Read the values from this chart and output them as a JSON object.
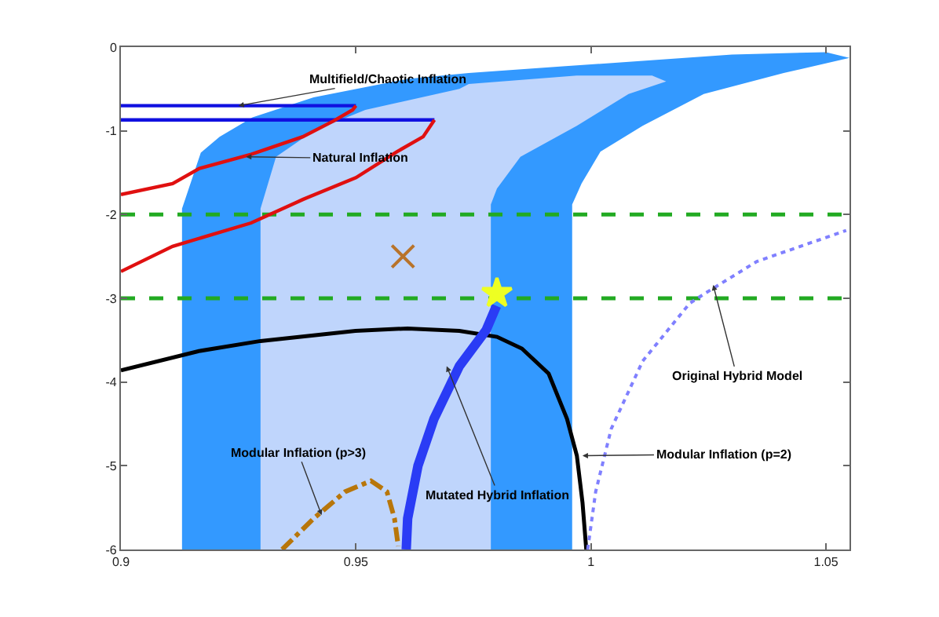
{
  "chart_data": {
    "type": "line",
    "xlim": [
      0.9,
      1.055
    ],
    "ylim": [
      -6,
      0
    ],
    "xticks": [
      0.9,
      0.95,
      {
        "value": 1,
        "label": "1"
      },
      1.05
    ],
    "yticks": [
      0,
      -1,
      -2,
      -3,
      -4,
      -5,
      -6
    ],
    "marker": "none",
    "series": [
      {
        "type": "area",
        "color": "#3399ff",
        "x": [
          0.913,
          0.913,
          0.917,
          0.921,
          0.928,
          0.941,
          0.961,
          0.974,
          0.994,
          1.03,
          1.05,
          1.055,
          1.041,
          1.024,
          1.011,
          1.002,
          0.998,
          0.996,
          0.996
        ],
        "values": [
          -6,
          -1.93,
          -1.26,
          -1.07,
          -0.84,
          -0.6,
          -0.38,
          -0.31,
          -0.23,
          -0.09,
          -0.06,
          -0.13,
          -0.31,
          -0.56,
          -0.94,
          -1.25,
          -1.63,
          -1.88,
          -6
        ]
      },
      {
        "type": "area",
        "color": "#bfd5fc",
        "x": [
          0.9297,
          0.9297,
          0.933,
          0.941,
          0.952,
          0.972,
          0.974,
          0.997,
          1.013,
          1.016,
          1.008,
          0.997,
          0.985,
          0.98,
          0.9787,
          0.9787
        ],
        "values": [
          -6,
          -1.93,
          -1.31,
          -1.0,
          -0.75,
          -0.5,
          -0.44,
          -0.34,
          -0.34,
          -0.41,
          -0.56,
          -0.94,
          -1.31,
          -1.69,
          -1.88,
          -6
        ]
      },
      {
        "color": "#1010e0",
        "x": [
          0.9,
          0.95
        ],
        "values": [
          -0.7,
          -0.7
        ]
      },
      {
        "color": "#1010e0",
        "x": [
          0.9,
          0.9667
        ],
        "values": [
          -0.87,
          -0.87
        ]
      },
      {
        "color": "#e01010",
        "x": [
          0.9,
          0.911,
          0.9167,
          0.9277,
          0.9387,
          0.9453,
          0.9493,
          0.95
        ],
        "values": [
          -1.76,
          -1.63,
          -1.45,
          -1.28,
          -1.07,
          -0.88,
          -0.75,
          -0.7
        ]
      },
      {
        "color": "#e01010",
        "x": [
          0.9,
          0.911,
          0.9277,
          0.9387,
          0.95,
          0.9587,
          0.9643,
          0.9667
        ],
        "values": [
          -2.68,
          -2.38,
          -2.1,
          -1.82,
          -1.56,
          -1.25,
          -1.07,
          -0.87
        ]
      },
      {
        "color": "#000000",
        "x": [
          0.9,
          0.9166,
          0.9297,
          0.9499,
          0.961,
          0.972,
          0.98,
          0.9853,
          0.991,
          0.9949,
          0.997,
          0.9982,
          0.999
        ],
        "values": [
          -3.86,
          -3.63,
          -3.51,
          -3.39,
          -3.36,
          -3.39,
          -3.46,
          -3.6,
          -3.9,
          -4.44,
          -4.88,
          -5.44,
          -6
        ]
      },
      {
        "color": "#2a3cf5",
        "x": [
          0.9607,
          0.961,
          0.9632,
          0.9666,
          0.972,
          0.9777,
          0.9799
        ],
        "values": [
          -6,
          -5.63,
          -5.0,
          -4.44,
          -3.81,
          -3.38,
          -3.09
        ]
      },
      {
        "color": "#b8760a",
        "line_style": "dashdot",
        "x": [
          0.9343,
          0.941,
          0.9477,
          0.9532,
          0.9566,
          0.9582,
          0.959
        ],
        "values": [
          -6,
          -5.63,
          -5.31,
          -5.18,
          -5.31,
          -5.63,
          -5.96
        ]
      },
      {
        "color": "#8080ff",
        "line_style": "dotted",
        "x": [
          0.9993,
          1.001,
          1.0043,
          1.011,
          1.021,
          1.0243,
          1.0353,
          1.0543
        ],
        "values": [
          -6,
          -5.31,
          -4.56,
          -3.75,
          -3.06,
          -2.94,
          -2.56,
          -2.19
        ]
      },
      {
        "type": "scatter",
        "color": "#b8732a",
        "marker": "cross",
        "x": [
          0.96
        ],
        "values": [
          -2.5
        ]
      },
      {
        "type": "scatter",
        "color": "#eeff22",
        "marker": "star",
        "x": [
          0.98
        ],
        "values": [
          -2.94
        ]
      }
    ],
    "ref_lines": [
      {
        "axis": "y",
        "value": -2,
        "color": "#22aa22",
        "line_style": "dashed"
      },
      {
        "axis": "y",
        "value": -3,
        "color": "#22aa22",
        "line_style": "dashed"
      }
    ],
    "annotations": [
      {
        "text": "Multifield/Chaotic Inflation",
        "x": 0.925,
        "y": -0.7
      },
      {
        "text": "Natural Inflation",
        "x": 0.9266,
        "y": -1.31
      },
      {
        "text": "Modular Inflation (p>3)",
        "x": 0.9427,
        "y": -5.59
      },
      {
        "text": "Mutated Hybrid Inflation",
        "x": 0.9693,
        "y": -3.81
      },
      {
        "text": "Modular Inflation (p=2)",
        "x": 0.9982,
        "y": -4.88
      },
      {
        "text": "Original Hybrid Model",
        "x": 1.026,
        "y": -2.84
      }
    ]
  }
}
